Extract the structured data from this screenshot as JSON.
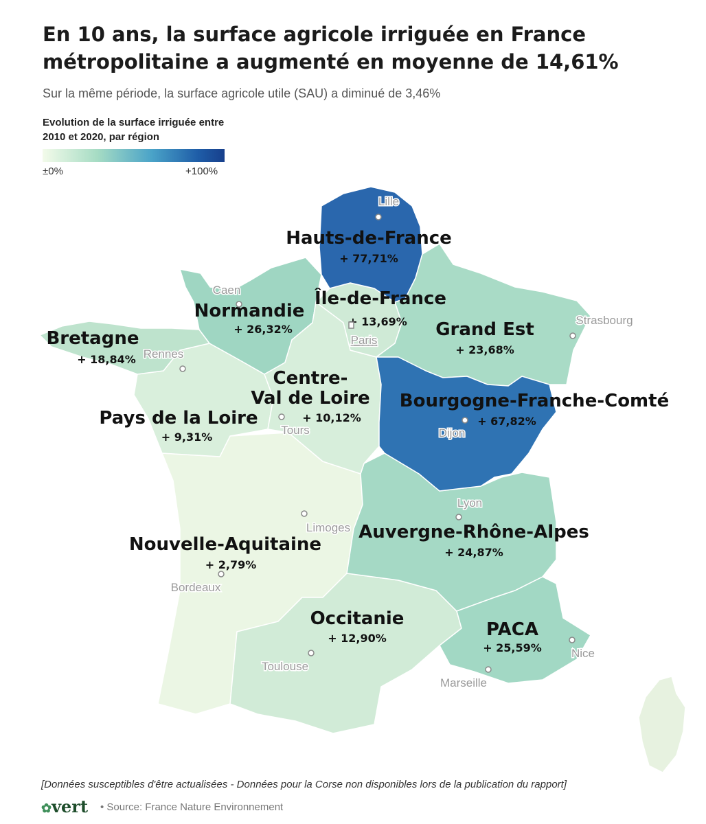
{
  "header": {
    "title": "En 10 ans, la surface agricole irriguée en France métropolitaine a augmenté en moyenne de 14,61%",
    "subtitle": "Sur la même période, la surface agricole utile (SAU) a diminué de 3,46%"
  },
  "legend": {
    "title": "Evolution de la surface irriguée entre 2010 et 2020, par région",
    "min_label": "±0%",
    "max_label": "+100%",
    "color_low": "#f3fbea",
    "color_high": "#173f8c"
  },
  "regions": [
    {
      "name": "Hauts-de-France",
      "value": "+ 77,71%",
      "pct": 77.71,
      "color": "#2a67ad"
    },
    {
      "name": "Normandie",
      "value": "+ 26,32%",
      "pct": 26.32,
      "color": "#9fd6c2"
    },
    {
      "name": "Île-de-France",
      "value": "+ 13,69%",
      "pct": 13.69,
      "color": "#cfead6"
    },
    {
      "name": "Bretagne",
      "value": "+ 18,84%",
      "pct": 18.84,
      "color": "#bee3cd"
    },
    {
      "name": "Grand Est",
      "value": "+ 23,68%",
      "pct": 23.68,
      "color": "#a9dbc6"
    },
    {
      "name": "Centre-Val de Loire",
      "name_line1": "Centre-",
      "name_line2": "Val de Loire",
      "value": "+ 10,12%",
      "pct": 10.12,
      "color": "#d7eedb"
    },
    {
      "name": "Bourgogne-Franche-Comté",
      "value": "+ 67,82%",
      "pct": 67.82,
      "color": "#2f73b3"
    },
    {
      "name": "Pays de la Loire",
      "value": "+ 9,31%",
      "pct": 9.31,
      "color": "#d9efdc"
    },
    {
      "name": "Nouvelle-Aquitaine",
      "value": "+ 2,79%",
      "pct": 2.79,
      "color": "#ebf6e4"
    },
    {
      "name": "Auvergne-Rhône-Alpes",
      "value": "+ 24,87%",
      "pct": 24.87,
      "color": "#a5d9c5"
    },
    {
      "name": "Occitanie",
      "value": "+ 12,90%",
      "pct": 12.9,
      "color": "#d1ebd7"
    },
    {
      "name": "PACA",
      "value": "+ 25,59%",
      "pct": 25.59,
      "color": "#a2d8c4"
    }
  ],
  "cities": [
    "Lille",
    "Caen",
    "Paris",
    "Strasbourg",
    "Rennes",
    "Tours",
    "Dijon",
    "Lyon",
    "Limoges",
    "Bordeaux",
    "Toulouse",
    "Marseille",
    "Nice"
  ],
  "corsica_color": "#e7f2e0",
  "footer": {
    "note": "[Données susceptibles d'être actualisées - Données pour la Corse non disponibles lors de la publication du rapport]",
    "brand": "vert",
    "source": "• Source: France Nature Environnement"
  }
}
